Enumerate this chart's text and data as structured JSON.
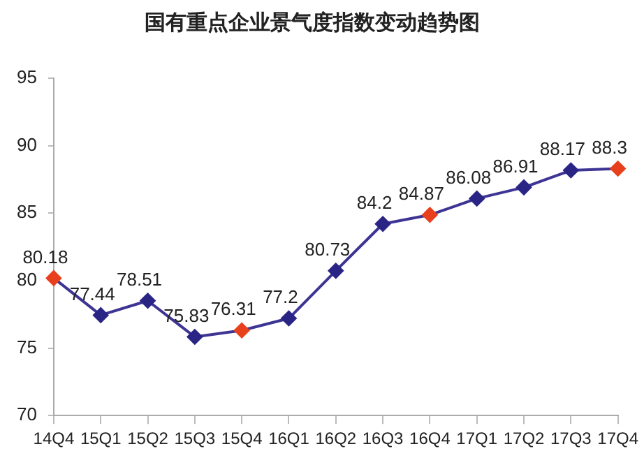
{
  "chart_data": {
    "type": "line",
    "title": "国有重点企业景气度指数变动趋势图",
    "categories": [
      "14Q4",
      "15Q1",
      "15Q2",
      "15Q3",
      "15Q4",
      "16Q1",
      "16Q2",
      "16Q3",
      "16Q4",
      "17Q1",
      "17Q2",
      "17Q3",
      "17Q4"
    ],
    "series": [
      {
        "color": "#3d3494",
        "colors": [
          "#e8401c",
          "#2a2585",
          "#2a2585",
          "#2a2585",
          "#e8401c",
          "#2a2585",
          "#2a2585",
          "#2a2585",
          "#e8401c",
          "#2a2585",
          "#2a2585",
          "#2a2585",
          "#e8401c"
        ],
        "values": [
          80.18,
          77.44,
          78.51,
          75.83,
          76.31,
          77.2,
          80.73,
          84.2,
          84.87,
          86.08,
          86.91,
          88.17,
          88.3
        ]
      }
    ],
    "ylim": [
      70,
      95
    ],
    "yticks": [
      70,
      75,
      80,
      85,
      90,
      95
    ],
    "grid": false,
    "legend": false,
    "marker": "diamond",
    "line_style": "solid",
    "data_labels": true
  }
}
